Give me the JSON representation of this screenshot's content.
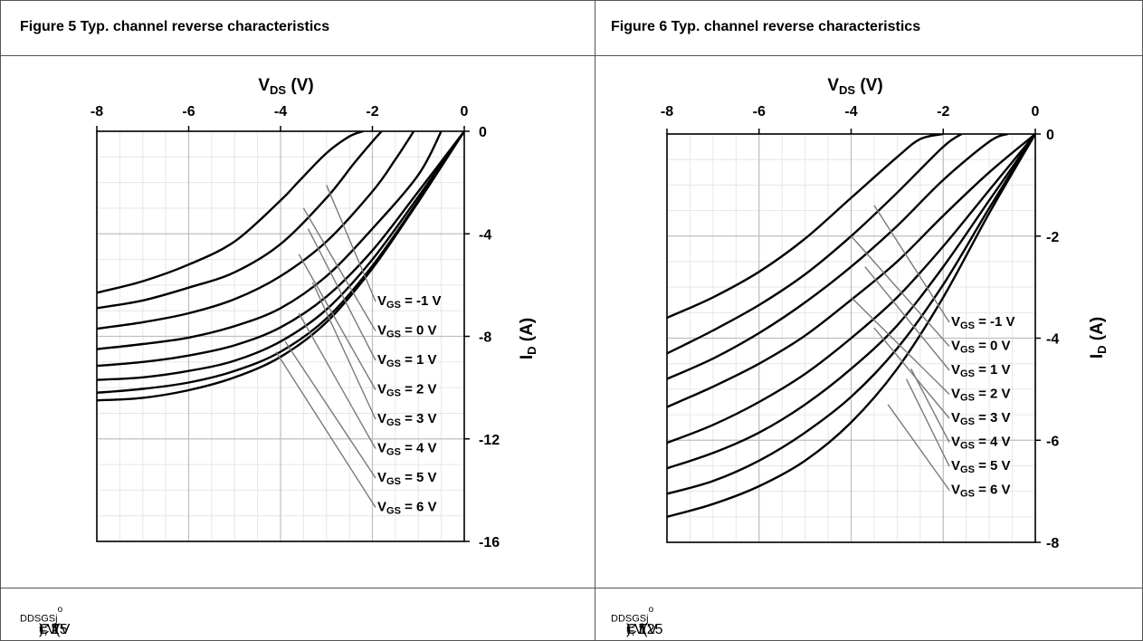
{
  "figures": [
    {
      "caption": "Figure 5 Typ. channel reverse characteristics",
      "footer": {
        "p1": "I",
        "s1": "D",
        "p2": " = f(V",
        "s2": "DS",
        "p3": ", V",
        "s3": "GS",
        "p4": "); T",
        "s4": "j",
        "p5": " = 25 ",
        "s5": "o",
        "p6": "C"
      }
    },
    {
      "caption": "Figure 6 Typ. channel reverse characteristics",
      "footer": {
        "p1": "I",
        "s1": "D",
        "p2": " = f(V",
        "s2": "DS",
        "p3": ", V",
        "s3": "GS",
        "p4": "); T",
        "s4": "j",
        "p5": " = 125 ",
        "s5": "o",
        "p6": "C"
      }
    }
  ],
  "chart_data": [
    {
      "type": "line",
      "xlabel": {
        "main": "V",
        "sub": "DS",
        "unit": " (V)"
      },
      "ylabel": {
        "main": "I",
        "sub": "D",
        "unit": " (A)"
      },
      "xlim": [
        -8,
        0
      ],
      "ylim": [
        -16,
        0
      ],
      "x_ticks": [
        -8,
        -6,
        -4,
        -2,
        0
      ],
      "y_ticks": [
        0,
        -4,
        -8,
        -12,
        -16
      ],
      "grid": true,
      "x_axis_position": "top",
      "y_axis_position": "right",
      "legend": "annotations with leader lines, lower-right",
      "annotation_prefix": {
        "main": "V",
        "sub": "GS",
        "eq": " = "
      },
      "series": [
        {
          "name": "-1 V",
          "x": [
            -8,
            -7,
            -6,
            -5,
            -4,
            -3.6,
            -3,
            -2.5,
            -2.2
          ],
          "y": [
            -6.3,
            -5.85,
            -5.2,
            -4.3,
            -2.7,
            -1.95,
            -0.85,
            -0.2,
            0
          ]
        },
        {
          "name": "0 V",
          "x": [
            -8,
            -7,
            -6,
            -5,
            -4,
            -3,
            -2.4,
            -2,
            -1.8
          ],
          "y": [
            -6.9,
            -6.6,
            -6.1,
            -5.5,
            -4.4,
            -2.6,
            -1.25,
            -0.4,
            0
          ]
        },
        {
          "name": "1 V",
          "x": [
            -8,
            -7,
            -6,
            -5,
            -4,
            -3,
            -2,
            -1.5,
            -1.1
          ],
          "y": [
            -7.7,
            -7.45,
            -7.1,
            -6.55,
            -5.65,
            -4.3,
            -2.35,
            -1.1,
            0
          ]
        },
        {
          "name": "2 V",
          "x": [
            -8,
            -7,
            -6,
            -5,
            -4,
            -3,
            -2,
            -1,
            -0.5
          ],
          "y": [
            -8.5,
            -8.3,
            -8.05,
            -7.6,
            -6.9,
            -5.65,
            -3.8,
            -1.7,
            0
          ]
        },
        {
          "name": "3 V",
          "x": [
            -8,
            -7,
            -6,
            -5,
            -4,
            -3,
            -2,
            -1,
            0
          ],
          "y": [
            -9.15,
            -9.0,
            -8.75,
            -8.35,
            -7.65,
            -6.45,
            -4.65,
            -2.35,
            0
          ]
        },
        {
          "name": "4 V",
          "x": [
            -8,
            -7,
            -6,
            -5,
            -4,
            -3,
            -2,
            -1,
            0
          ],
          "y": [
            -9.7,
            -9.6,
            -9.35,
            -8.95,
            -8.2,
            -6.95,
            -5.0,
            -2.55,
            0
          ]
        },
        {
          "name": "5 V",
          "x": [
            -8,
            -7,
            -6,
            -5,
            -4,
            -3,
            -2,
            -1,
            0
          ],
          "y": [
            -10.2,
            -10.05,
            -9.8,
            -9.35,
            -8.6,
            -7.3,
            -5.25,
            -2.7,
            0
          ]
        },
        {
          "name": "6 V",
          "x": [
            -8,
            -7,
            -6,
            -5,
            -4,
            -3,
            -2,
            -1,
            0
          ],
          "y": [
            -10.5,
            -10.4,
            -10.1,
            -9.6,
            -8.8,
            -7.45,
            -5.35,
            -2.75,
            0
          ]
        }
      ]
    },
    {
      "type": "line",
      "xlabel": {
        "main": "V",
        "sub": "DS",
        "unit": " (V)"
      },
      "ylabel": {
        "main": "I",
        "sub": "D",
        "unit": " (A)"
      },
      "xlim": [
        -8,
        0
      ],
      "ylim": [
        -8,
        0
      ],
      "x_ticks": [
        -8,
        -6,
        -4,
        -2,
        0
      ],
      "y_ticks": [
        0,
        -2,
        -4,
        -6,
        -8
      ],
      "grid": true,
      "x_axis_position": "top",
      "y_axis_position": "right",
      "legend": "annotations with leader lines, lower-right",
      "annotation_prefix": {
        "main": "V",
        "sub": "GS",
        "eq": " = "
      },
      "series": [
        {
          "name": "-1 V",
          "x": [
            -8,
            -7,
            -6,
            -5,
            -4,
            -3,
            -2.5,
            -2
          ],
          "y": [
            -3.6,
            -3.2,
            -2.7,
            -2.05,
            -1.25,
            -0.45,
            -0.1,
            0
          ]
        },
        {
          "name": "0 V",
          "x": [
            -8,
            -7,
            -6,
            -5,
            -4,
            -3,
            -2,
            -1.6
          ],
          "y": [
            -4.3,
            -3.85,
            -3.35,
            -2.75,
            -2.0,
            -1.15,
            -0.25,
            0
          ]
        },
        {
          "name": "1 V",
          "x": [
            -8,
            -7,
            -6,
            -5,
            -4,
            -3,
            -2,
            -1,
            -0.6
          ],
          "y": [
            -4.8,
            -4.4,
            -3.9,
            -3.3,
            -2.6,
            -1.8,
            -0.9,
            -0.15,
            0
          ]
        },
        {
          "name": "2 V",
          "x": [
            -8,
            -7,
            -6,
            -5,
            -4,
            -3,
            -2,
            -1,
            0
          ],
          "y": [
            -5.35,
            -4.95,
            -4.5,
            -3.95,
            -3.25,
            -2.5,
            -1.6,
            -0.75,
            0
          ]
        },
        {
          "name": "3 V",
          "x": [
            -8,
            -7,
            -6,
            -5,
            -4,
            -3,
            -2,
            -1,
            0
          ],
          "y": [
            -6.05,
            -5.7,
            -5.25,
            -4.7,
            -4.0,
            -3.2,
            -2.2,
            -1.1,
            0
          ]
        },
        {
          "name": "4 V",
          "x": [
            -8,
            -7,
            -6,
            -5,
            -4,
            -3,
            -2,
            -1,
            0
          ],
          "y": [
            -6.55,
            -6.25,
            -5.85,
            -5.3,
            -4.6,
            -3.75,
            -2.6,
            -1.3,
            0
          ]
        },
        {
          "name": "5 V",
          "x": [
            -8,
            -7,
            -6,
            -5,
            -4,
            -3,
            -2,
            -1,
            0
          ],
          "y": [
            -7.05,
            -6.8,
            -6.4,
            -5.85,
            -5.15,
            -4.2,
            -2.95,
            -1.45,
            0
          ]
        },
        {
          "name": "6 V",
          "x": [
            -8,
            -7,
            -6,
            -5,
            -4,
            -3,
            -2,
            -1,
            0
          ],
          "y": [
            -7.5,
            -7.25,
            -6.9,
            -6.4,
            -5.65,
            -4.6,
            -3.2,
            -1.55,
            0
          ]
        }
      ]
    }
  ]
}
